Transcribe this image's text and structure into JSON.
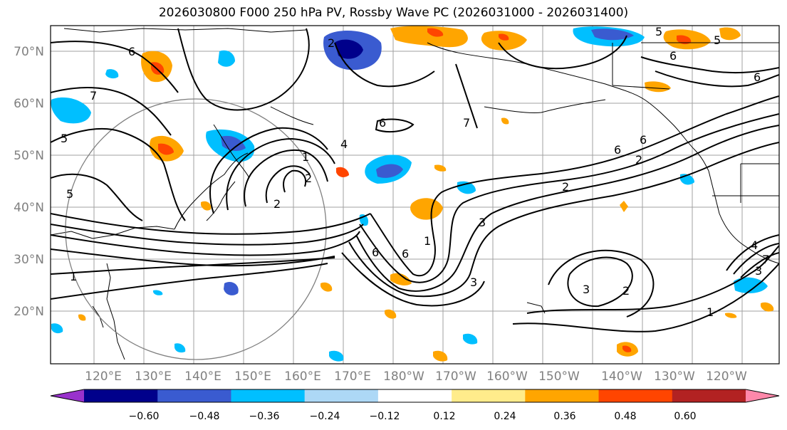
{
  "title": "2026030800 F000 250 hPa PV, Rossby Wave PC (2026031000 - 2026031400)",
  "lat_labels": [
    "70°N",
    "60°N",
    "50°N",
    "40°N",
    "30°N",
    "20°N"
  ],
  "lon_labels": [
    "120°E",
    "130°E",
    "140°E",
    "150°E",
    "160°E",
    "170°E",
    "180°W",
    "170°W",
    "160°W",
    "150°W",
    "140°W",
    "130°W",
    "120°W"
  ],
  "colorbar": {
    "colors": [
      "#9932cc",
      "#00008b",
      "#3a5bd0",
      "#00bfff",
      "#add8f6",
      "#ffffff",
      "#ffec8b",
      "#ffa500",
      "#ff4500",
      "#b22222",
      "#ff88aa"
    ],
    "tick_labels": [
      "−0.60",
      "−0.48",
      "−0.36",
      "−0.24",
      "−0.12",
      "0.12",
      "0.24",
      "0.36",
      "0.48",
      "0.60"
    ]
  },
  "contour_labels": [
    "6",
    "7",
    "5",
    "5",
    "2",
    "6",
    "4",
    "1",
    "2",
    "2",
    "7",
    "6",
    "1",
    "6",
    "2",
    "3",
    "3",
    "1",
    "3",
    "2",
    "1",
    "5",
    "6",
    "6",
    "2",
    "4",
    "3",
    "7",
    "6",
    "5",
    "6"
  ]
}
